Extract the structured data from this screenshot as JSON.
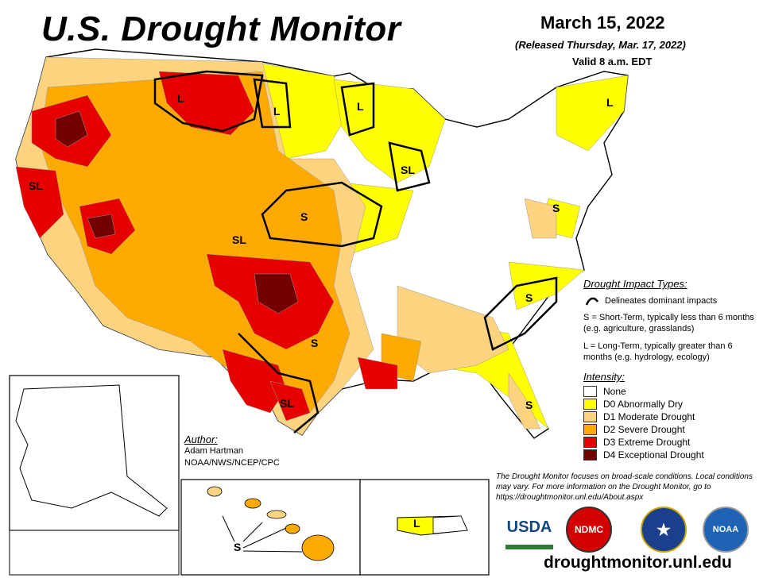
{
  "header": {
    "title": "U.S. Drought Monitor",
    "date": "March 15, 2022",
    "released": "(Released Thursday, Mar. 17, 2022)",
    "valid": "Valid 8 a.m. EDT"
  },
  "impact_legend": {
    "heading": "Drought Impact Types:",
    "delineates": "Delineates dominant impacts",
    "short_term": "S = Short-Term, typically less than 6 months (e.g. agriculture, grasslands)",
    "long_term": "L = Long-Term, typically greater than 6 months (e.g. hydrology, ecology)"
  },
  "intensity_legend": {
    "heading": "Intensity:",
    "items": [
      {
        "label": "None",
        "color": "#ffffff"
      },
      {
        "label": "D0 Abnormally Dry",
        "color": "#ffff00"
      },
      {
        "label": "D1 Moderate Drought",
        "color": "#fcd37f"
      },
      {
        "label": "D2 Severe Drought",
        "color": "#ffaa00"
      },
      {
        "label": "D3 Extreme Drought",
        "color": "#e60000"
      },
      {
        "label": "D4 Exceptional Drought",
        "color": "#730000"
      }
    ]
  },
  "author": {
    "heading": "Author:",
    "name": "Adam Hartman",
    "org": "NOAA/NWS/NCEP/CPC"
  },
  "disclaimer": "The Drought Monitor focuses on broad-scale conditions. Local conditions may vary. For more information on the Drought Monitor, go to https://droughtmonitor.unl.edu/About.aspx",
  "footer": {
    "url": "droughtmonitor.unl.edu"
  },
  "logos": {
    "usda": "USDA",
    "ndmc": "NDMC",
    "noaa": "NOAA"
  },
  "map_labels": {
    "sl_west": "SL",
    "l_north": "L",
    "l_montana": "L",
    "l_great_lakes": "L",
    "l_maine": "L",
    "sl_wisconsin": "SL",
    "s_plains": "S",
    "sl_central": "SL",
    "s_mid_atlantic": "S",
    "s_carolinas": "S",
    "s_texas": "S",
    "sl_south_texas": "SL",
    "s_florida": "S",
    "s_hawaii": "S",
    "l_puerto_rico": "L"
  }
}
